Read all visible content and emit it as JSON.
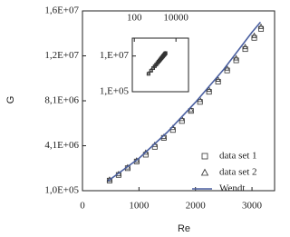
{
  "chart_data": {
    "type": "scatter",
    "x_label": "Re",
    "y_label": "G",
    "xlim": [
      0,
      3400
    ],
    "xticks": [
      0,
      1000,
      2000,
      3000
    ],
    "ylim": [
      100000,
      16100000
    ],
    "yticks": [
      {
        "value": 100000,
        "label": "1,0E+05"
      },
      {
        "value": 4100000,
        "label": "4,1E+06"
      },
      {
        "value": 8100000,
        "label": "8,1E+06"
      },
      {
        "value": 12100000,
        "label": "1,2E+07"
      },
      {
        "value": 16100000,
        "label": "1,6E+07"
      }
    ],
    "legend": "lower right",
    "series": [
      {
        "name": "data set 1",
        "marker": "square",
        "color": "#333333",
        "x": [
          480,
          640,
          800,
          960,
          1120,
          1280,
          1440,
          1600,
          1760,
          1920,
          2080,
          2240,
          2400,
          2560,
          2720,
          2880,
          3040,
          3160
        ],
        "values": [
          1000000,
          1500000,
          2100000,
          2700000,
          3300000,
          4000000,
          4800000,
          5500000,
          6300000,
          7200000,
          8000000,
          8900000,
          9800000,
          10800000,
          11700000,
          12700000,
          13700000,
          14500000
        ]
      },
      {
        "name": "data set 2",
        "marker": "triangle",
        "color": "#333333",
        "x": [
          480,
          640,
          800,
          960,
          1120,
          1280,
          1440,
          1600,
          1760,
          1920,
          2080,
          2240,
          2400,
          2560,
          2720,
          2880,
          3040,
          3160
        ],
        "values": [
          1100000,
          1600000,
          2200000,
          2800000,
          3500000,
          4200000,
          4900000,
          5700000,
          6500000,
          7300000,
          8200000,
          9100000,
          10000000,
          11000000,
          11900000,
          12900000,
          13900000,
          14700000
        ]
      },
      {
        "name": "Wendt",
        "marker": "line",
        "color": "#4a5fa0",
        "x": [
          450,
          1000,
          1500,
          2000,
          2500,
          3000,
          3150
        ],
        "values": [
          960000,
          2980000,
          5300000,
          7970000,
          10900000,
          14200000,
          15100000
        ]
      }
    ],
    "inset": {
      "log": true,
      "xlim": [
        80,
        40000
      ],
      "xticks": [
        100,
        10000
      ],
      "ylim": [
        100000,
        100000000
      ],
      "yticks": [
        {
          "value": 10000000,
          "label": "1,E+07"
        },
        {
          "value": 100000,
          "label": "1,E+05"
        }
      ]
    }
  }
}
